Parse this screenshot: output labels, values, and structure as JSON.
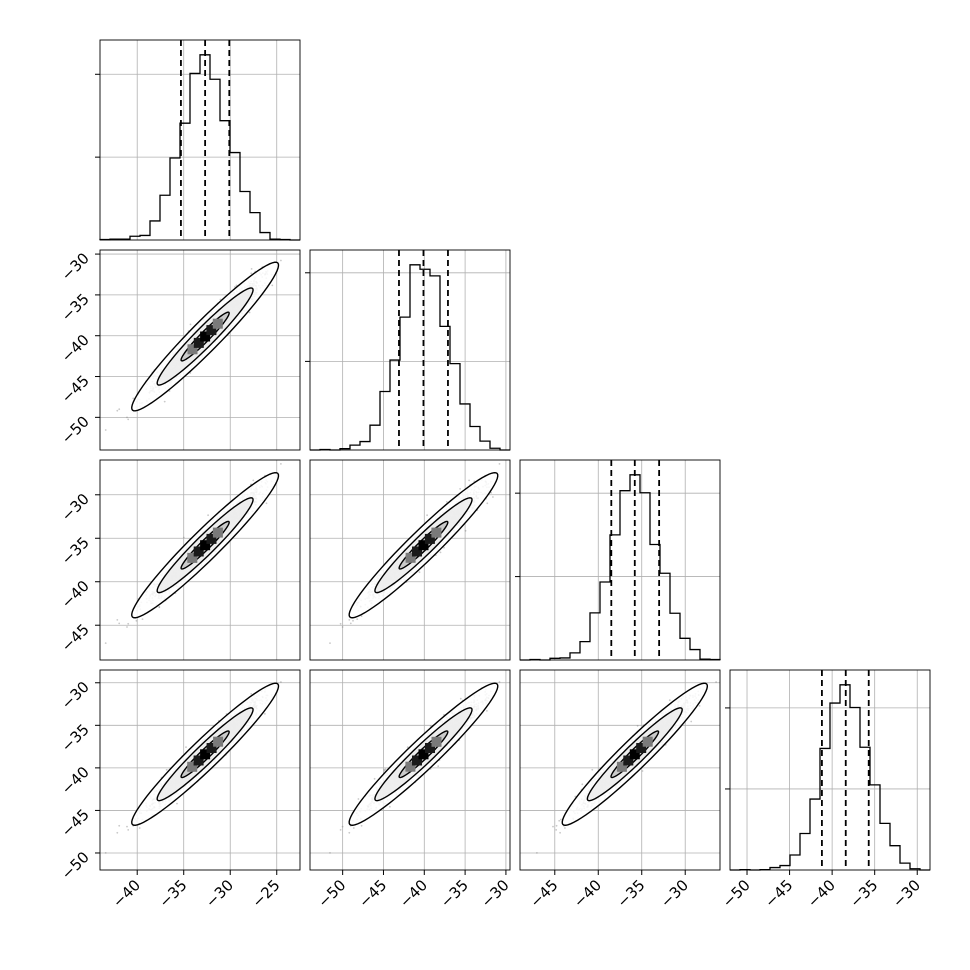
{
  "chart_data": {
    "type": "corner",
    "title": "",
    "dimensions": [
      {
        "range": [
          -44,
          -22.5
        ],
        "ticks": [
          -40,
          -35,
          -30,
          -25
        ],
        "tick_labels": [
          "−40",
          "−35",
          "−30",
          "−25"
        ],
        "mean": -32.7,
        "sigma": 2.6,
        "quantiles": [
          -35.3,
          -32.7,
          -30.1
        ]
      },
      {
        "range": [
          -54,
          -29.5
        ],
        "ticks": [
          -50,
          -45,
          -40,
          -35,
          -30
        ],
        "tick_labels": [
          "−50",
          "−45",
          "−40",
          "−35",
          "−30"
        ],
        "mean": -40.1,
        "sigma": 3.0,
        "quantiles": [
          -43.1,
          -40.1,
          -37.1
        ]
      },
      {
        "range": [
          -49,
          -26
        ],
        "ticks": [
          -45,
          -40,
          -35,
          -30
        ],
        "tick_labels": [
          "−45",
          "−40",
          "−35",
          "−30"
        ],
        "mean": -35.8,
        "sigma": 2.75,
        "quantiles": [
          -38.5,
          -35.8,
          -33.0
        ]
      },
      {
        "range": [
          -52,
          -28.5
        ],
        "ticks": [
          -50,
          -45,
          -40,
          -35,
          -30
        ],
        "tick_labels": [
          "−50",
          "−45",
          "−40",
          "−35",
          "−30"
        ],
        "mean": -38.4,
        "sigma": 2.75,
        "quantiles": [
          -41.2,
          -38.4,
          -35.7
        ]
      }
    ],
    "correlation": 0.96,
    "histogram_bins": 20,
    "contour_levels": [
      0.39,
      0.86,
      0.99
    ],
    "grid": true,
    "colors": {
      "line": "#000000",
      "quantile_line": "#000000",
      "grid": "#b0b0b0",
      "points": "#888888"
    }
  }
}
